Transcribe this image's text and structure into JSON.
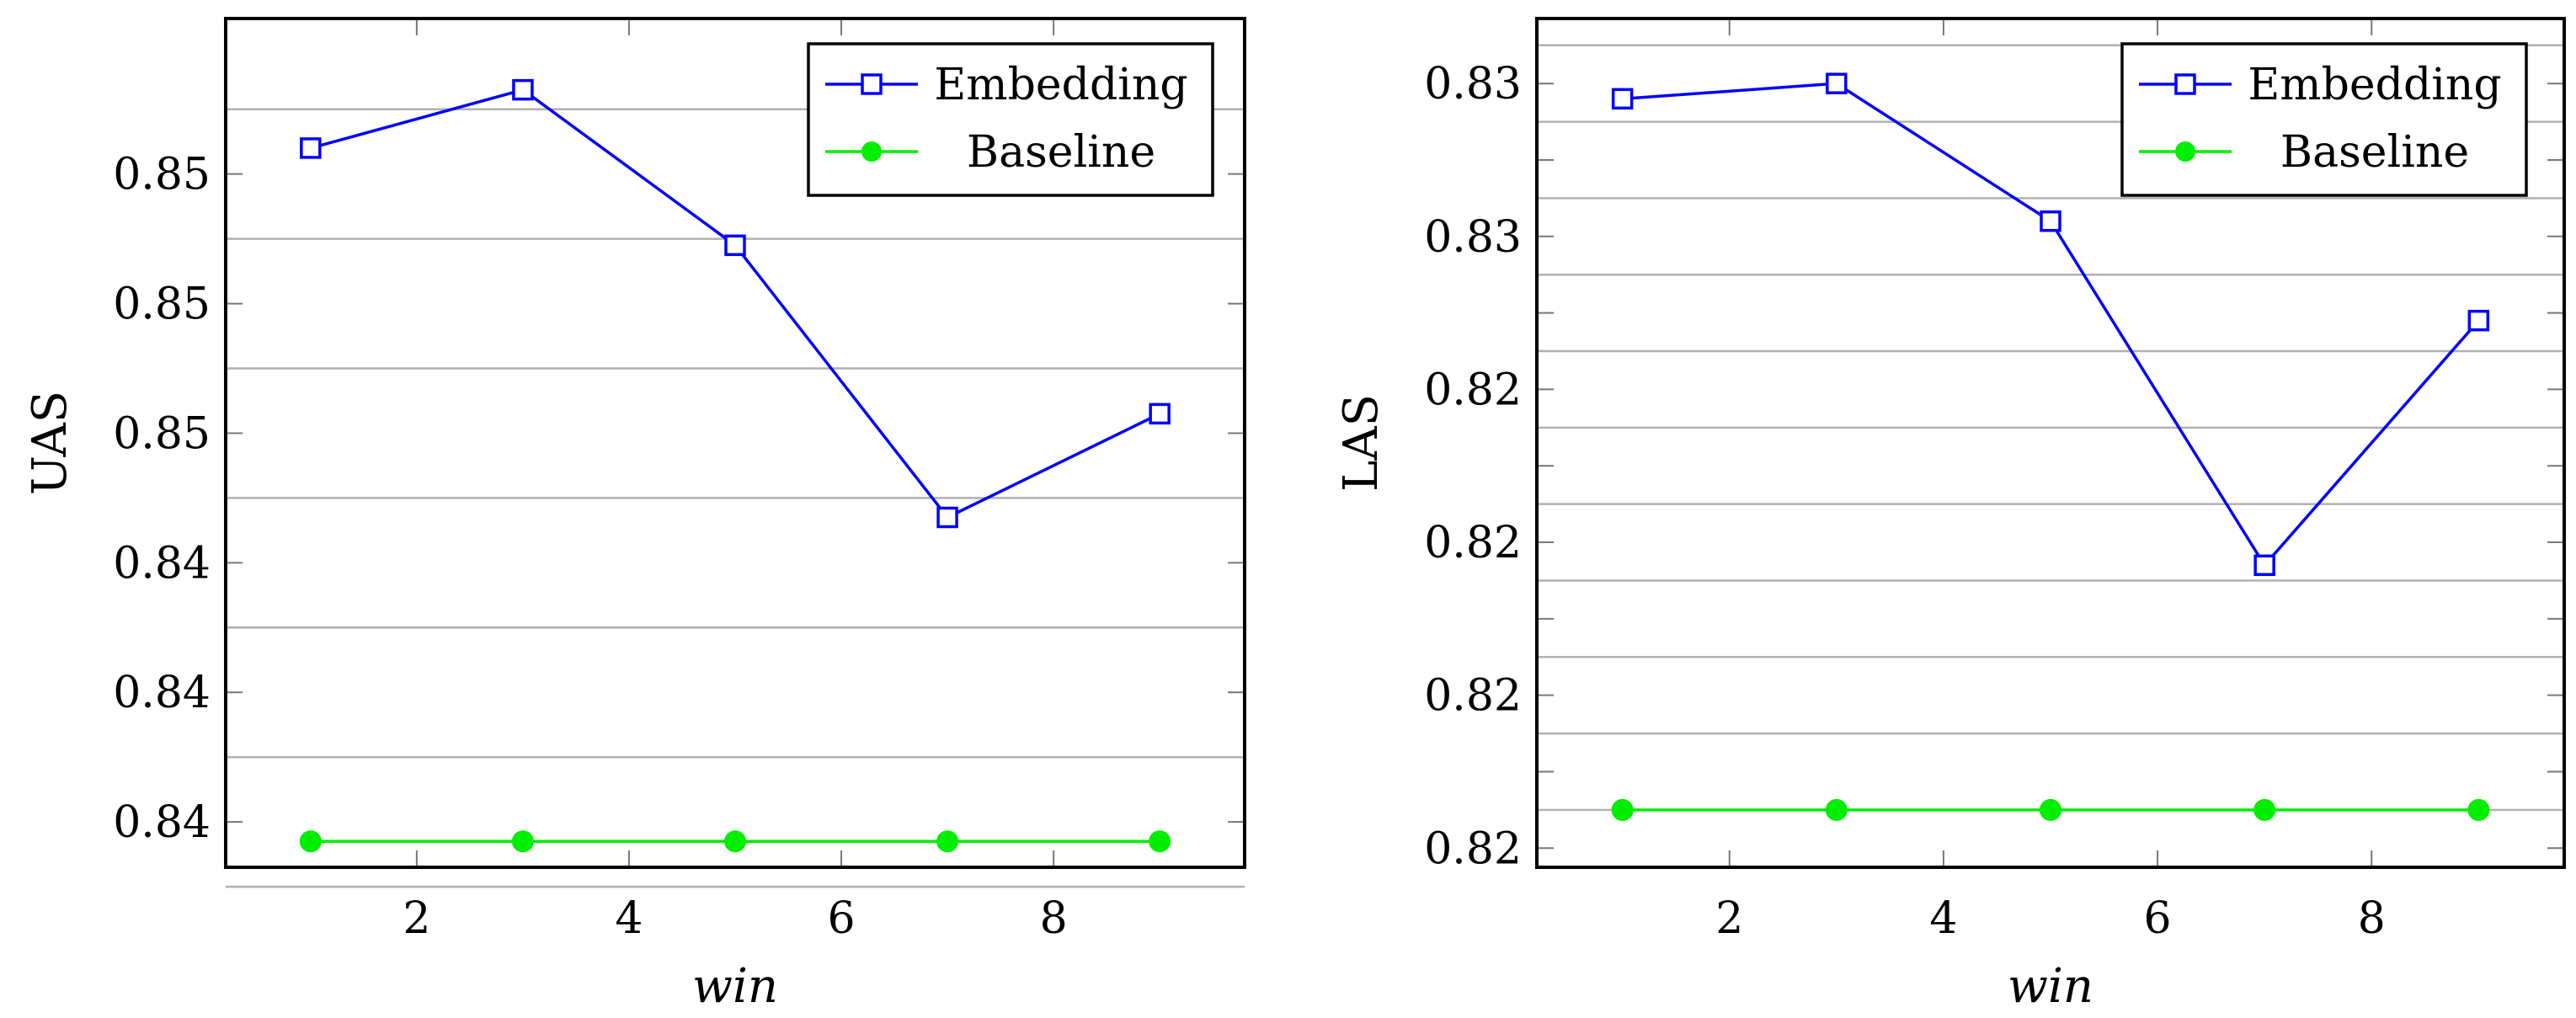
{
  "chart_data": [
    {
      "type": "line",
      "title": "",
      "xlabel": "win",
      "ylabel": "UAS",
      "x": [
        1,
        3,
        5,
        7,
        9
      ],
      "xlim": [
        0.2,
        9.8
      ],
      "xticks": [
        2,
        4,
        6,
        8
      ],
      "ylim": [
        0.8385,
        0.8516
      ],
      "yticks": [
        0.8392,
        0.8412,
        0.8432,
        0.8452,
        0.8472,
        0.8492
      ],
      "ytick_labels": [
        "0.84",
        "0.84",
        "0.84",
        "0.85",
        "0.85",
        "0.85"
      ],
      "hgrid": [
        0.8382,
        0.8402,
        0.8422,
        0.8442,
        0.8462,
        0.8482,
        0.8502
      ],
      "grid": "horizontal",
      "legend_position": "top-right",
      "series": [
        {
          "name": "Embedding",
          "color": "#0000ff",
          "marker": "square",
          "values": [
            0.8496,
            0.8505,
            0.8481,
            0.8439,
            0.8455
          ]
        },
        {
          "name": "Baseline",
          "color": "#00ee00",
          "marker": "circle",
          "values": [
            0.8389,
            0.8389,
            0.8389,
            0.8389,
            0.8389
          ]
        }
      ]
    },
    {
      "type": "line",
      "title": "",
      "xlabel": "win",
      "ylabel": "LAS",
      "x": [
        1,
        3,
        5,
        7,
        9
      ],
      "xlim": [
        0.2,
        9.8
      ],
      "xticks": [
        2,
        4,
        6,
        8
      ],
      "ylim": [
        0.81925,
        0.83035
      ],
      "yticks": [
        0.8195,
        0.8205,
        0.8215,
        0.8225,
        0.8235,
        0.8245,
        0.8255,
        0.8265,
        0.8275,
        0.8285,
        0.8295
      ],
      "ytick_labels": [
        "0.82",
        "",
        "0.82",
        "",
        "0.82",
        "",
        "0.82",
        "",
        "0.83",
        "",
        "0.83"
      ],
      "hgrid": [
        0.82,
        0.821,
        0.822,
        0.823,
        0.824,
        0.825,
        0.826,
        0.827,
        0.828,
        0.829,
        0.83
      ],
      "grid": "horizontal",
      "legend_position": "top-right",
      "series": [
        {
          "name": "Embedding",
          "color": "#0000ff",
          "marker": "square",
          "values": [
            0.8293,
            0.8295,
            0.8277,
            0.8232,
            0.8264
          ]
        },
        {
          "name": "Baseline",
          "color": "#00ee00",
          "marker": "circle",
          "values": [
            0.82,
            0.82,
            0.82,
            0.82,
            0.82
          ]
        }
      ]
    }
  ]
}
